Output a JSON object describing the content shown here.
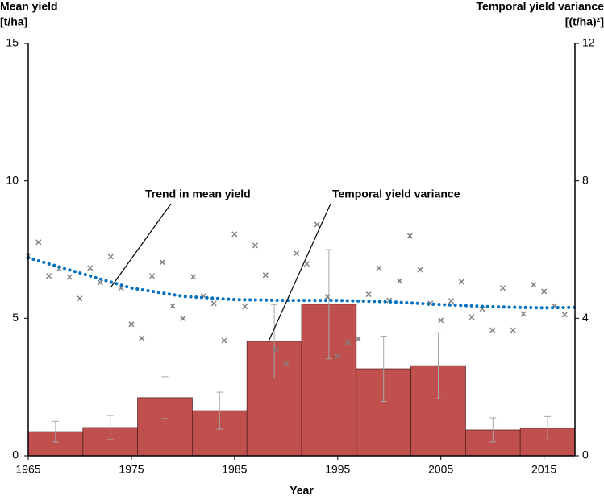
{
  "chart_data": {
    "type": "combo",
    "ylabel": [
      "Mean yield",
      "[t/ha]"
    ],
    "y2label": [
      "Temporal yield variance",
      "[(t/ha)²]"
    ],
    "xlabel": "Year",
    "xlim": [
      1965,
      2018
    ],
    "xticks": [
      1965,
      1975,
      1985,
      1995,
      2005,
      2015
    ],
    "ylim": [
      0,
      15
    ],
    "yticks": [
      0,
      5,
      10,
      15
    ],
    "y2lim": [
      0,
      12
    ],
    "y2ticks": [
      0,
      4,
      8,
      12
    ],
    "grid": false,
    "series": [
      {
        "name": "Temporal yield variance",
        "type": "histogram",
        "axis": "y2",
        "color": "#c0504d",
        "bins": [
          1965,
          1970.3,
          1975.6,
          1980.9,
          1986.2,
          1991.5,
          1996.8,
          2002.1,
          2007.4,
          2012.7,
          2018
        ],
        "values": [
          0.7,
          0.82,
          1.69,
          1.31,
          3.33,
          4.41,
          2.53,
          2.62,
          0.75,
          0.8
        ],
        "errors": [
          0.3,
          0.35,
          0.61,
          0.54,
          1.07,
          1.59,
          0.95,
          0.96,
          0.35,
          0.34
        ]
      },
      {
        "name": "Trend in mean yield",
        "type": "line",
        "color": "#0070c0",
        "x": [
          1965,
          1970,
          1975,
          1980,
          1985,
          1990,
          1995,
          2000,
          2005,
          2010,
          2015,
          2018
        ],
        "values": [
          7.2,
          6.65,
          6.1,
          5.8,
          5.68,
          5.65,
          5.65,
          5.6,
          5.5,
          5.42,
          5.38,
          5.4
        ]
      },
      {
        "type": "scatter",
        "color": "#808080",
        "x": [
          1965,
          1966,
          1967,
          1968,
          1969,
          1970,
          1971,
          1972,
          1973,
          1974,
          1975,
          1976,
          1977,
          1978,
          1979,
          1980,
          1981,
          1982,
          1983,
          1984,
          1985,
          1986,
          1987,
          1988,
          1989,
          1990,
          1991,
          1992,
          1993,
          1994,
          1995,
          1996,
          1997,
          1998,
          1999,
          2000,
          2001,
          2002,
          2003,
          2004,
          2005,
          2006,
          2007,
          2008,
          2009,
          2010,
          2011,
          2012,
          2013,
          2014,
          2015,
          2016,
          2017
        ],
        "values": [
          7.27,
          7.77,
          6.54,
          6.8,
          6.5,
          5.72,
          6.83,
          6.3,
          7.24,
          6.1,
          4.78,
          4.28,
          6.54,
          7.04,
          5.45,
          4.99,
          6.51,
          5.81,
          5.54,
          4.19,
          8.06,
          5.43,
          7.65,
          6.57,
          3.87,
          3.37,
          7.36,
          6.98,
          8.41,
          5.78,
          3.61,
          4.13,
          4.25,
          5.87,
          6.83,
          5.65,
          6.36,
          8.0,
          6.77,
          5.54,
          4.93,
          5.63,
          6.33,
          5.04,
          5.34,
          4.57,
          6.1,
          4.57,
          5.16,
          6.22,
          5.98,
          5.45,
          5.13
        ]
      }
    ]
  }
}
